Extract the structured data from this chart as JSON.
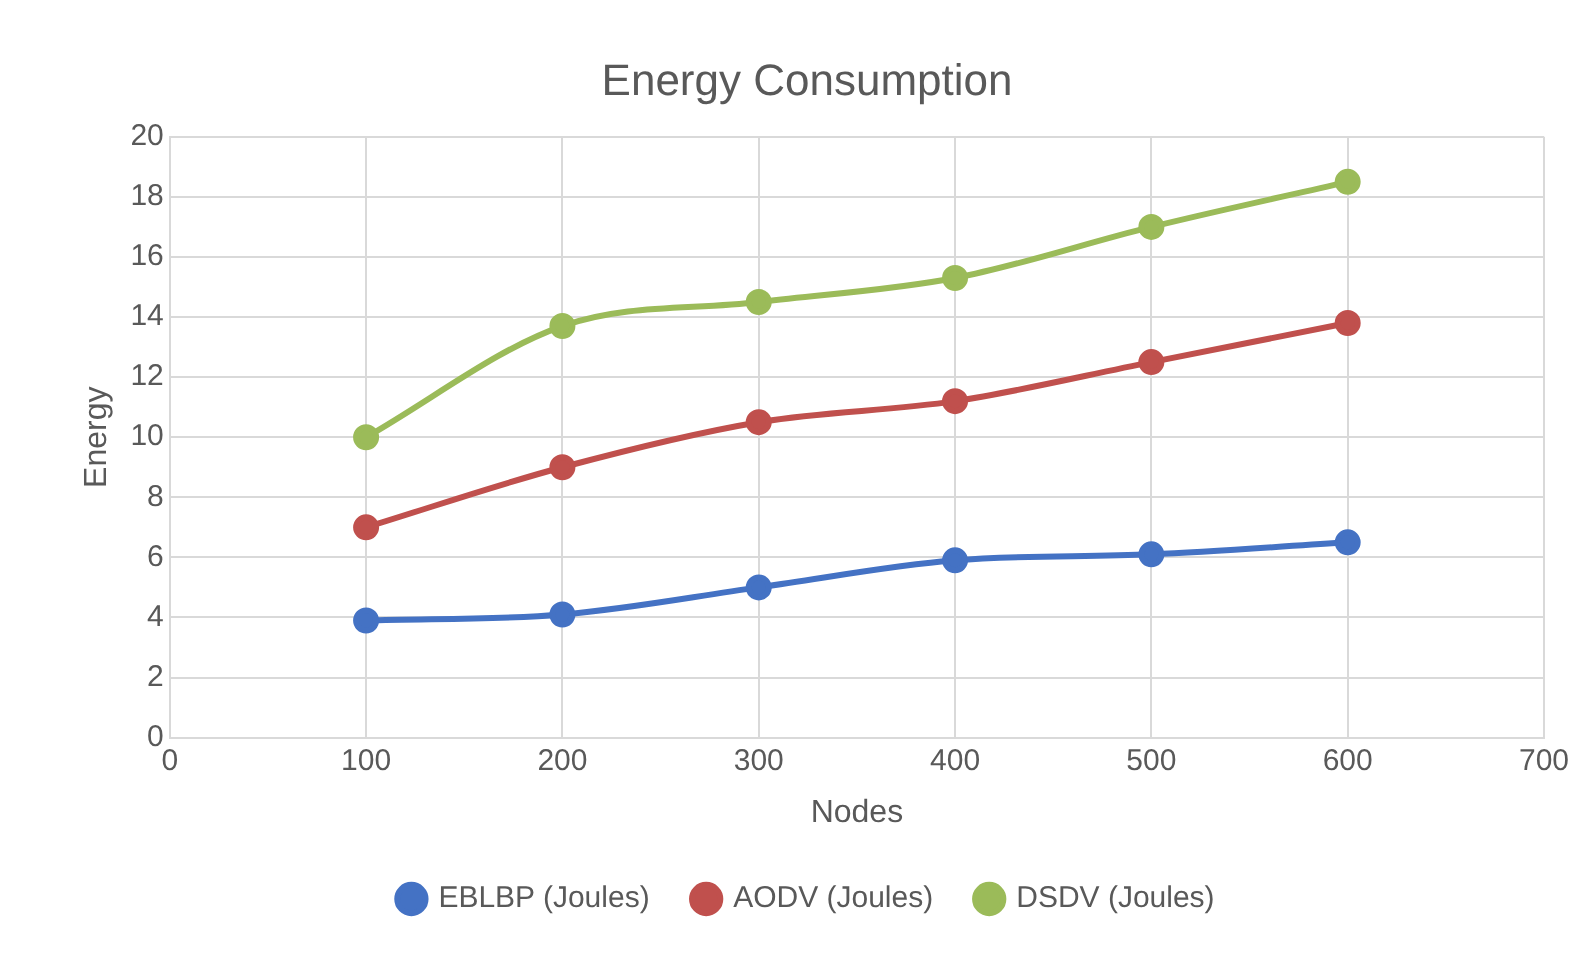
{
  "chart_data": {
    "type": "line",
    "title": "Energy Consumption",
    "xlabel": "Nodes",
    "ylabel": "Energy",
    "x": [
      100,
      200,
      300,
      400,
      500,
      600
    ],
    "series": [
      {
        "name": "EBLBP (Joules)",
        "color": "#4472c4",
        "values": [
          3.9,
          4.1,
          5.0,
          5.9,
          6.1,
          6.5
        ]
      },
      {
        "name": "AODV (Joules)",
        "color": "#c0504d",
        "values": [
          7.0,
          9.0,
          10.5,
          11.2,
          12.5,
          13.8
        ]
      },
      {
        "name": "DSDV (Joules)",
        "color": "#9bbb59",
        "values": [
          10.0,
          13.7,
          14.5,
          15.3,
          17.0,
          18.5
        ]
      }
    ],
    "xlim": [
      0,
      700
    ],
    "xticks": [
      0,
      100,
      200,
      300,
      400,
      500,
      600,
      700
    ],
    "ylim": [
      0,
      20
    ],
    "yticks": [
      0,
      2,
      4,
      6,
      8,
      10,
      12,
      14,
      16,
      18,
      20
    ],
    "grid": true,
    "legend": "bottom",
    "marker": "circle",
    "line_style": "solid"
  }
}
